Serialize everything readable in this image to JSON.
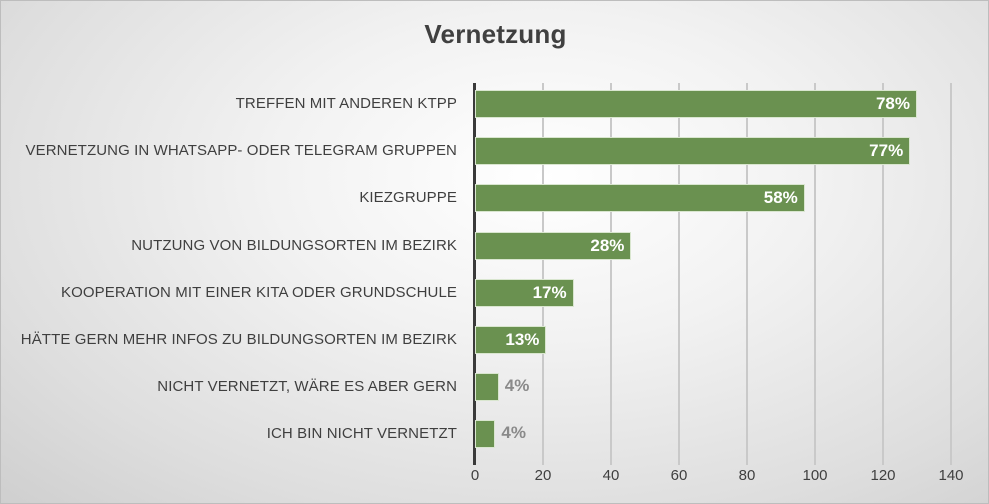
{
  "chart_data": {
    "type": "bar",
    "orientation": "horizontal",
    "title": "Vernetzung",
    "xlabel": "",
    "ylabel": "",
    "xlim": [
      0,
      140
    ],
    "x_ticks": [
      0,
      20,
      40,
      60,
      80,
      100,
      120,
      140
    ],
    "grid": true,
    "legend": null,
    "categories": [
      "TREFFEN MIT ANDEREN KTPP",
      "VERNETZUNG IN WHATSAPP- ODER TELEGRAM GRUPPEN",
      "KIEZGRUPPE",
      "NUTZUNG VON BILDUNGSORTEN IM BEZIRK",
      "KOOPERATION MIT EINER KITA ODER GRUNDSCHULE",
      "HÄTTE GERN MEHR INFOS ZU BILDUNGSORTEN IM BEZIRK",
      "NICHT VERNETZT, WÄRE ES ABER GERN",
      "ICH BIN NICHT VERNETZT"
    ],
    "values": [
      130,
      128,
      97,
      46,
      29,
      21,
      7,
      6
    ],
    "data_labels": [
      "78%",
      "77%",
      "58%",
      "28%",
      "17%",
      "13%",
      "4%",
      "4%"
    ],
    "bar_color": "#6a9150"
  }
}
